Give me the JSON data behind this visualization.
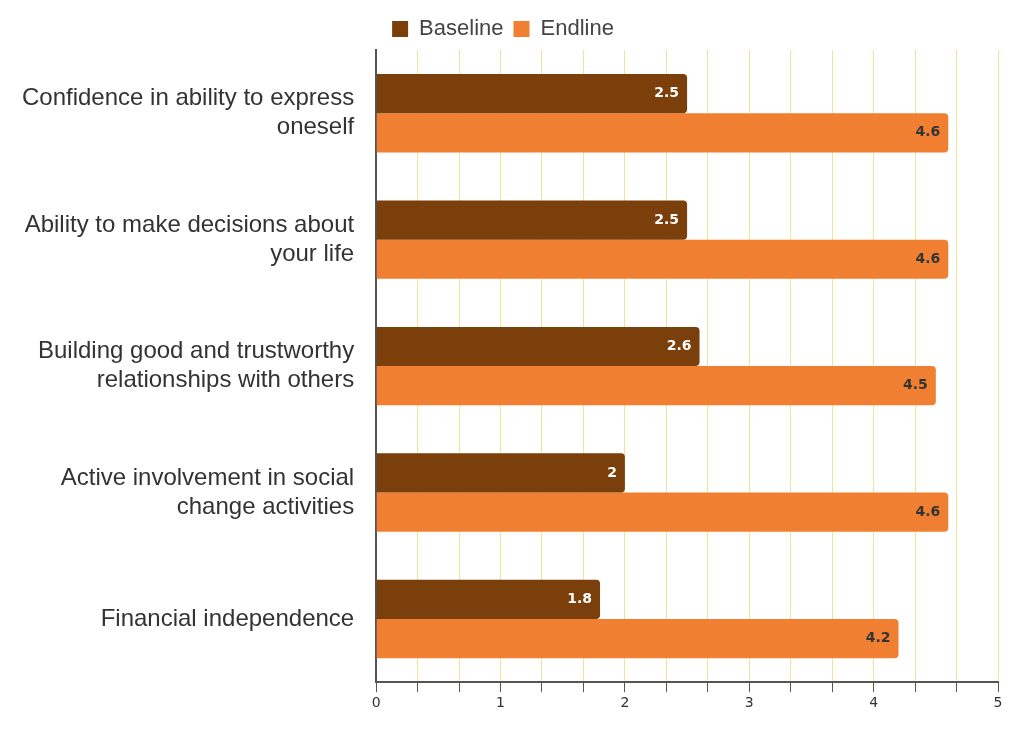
{
  "chart_data": {
    "type": "bar",
    "orientation": "horizontal",
    "categories": [
      "Confidence in ability to express oneself",
      "Ability to make decisions about your life",
      "Building good and trustworthy relationships with others",
      "Active involvement in social change activities",
      "Financial independence"
    ],
    "series": [
      {
        "name": "Baseline",
        "color": "#7a3f0a",
        "values": [
          2.5,
          2.5,
          2.6,
          2,
          1.8
        ]
      },
      {
        "name": "Endline",
        "color": "#f07f32",
        "values": [
          4.6,
          4.6,
          4.5,
          4.6,
          4.2
        ]
      }
    ],
    "xlim": [
      0,
      5
    ],
    "xticks": [
      0,
      {
        "value": 0.333,
        "label": null
      },
      {
        "value": 0.667,
        "label": null
      },
      1,
      {
        "value": 1.333,
        "label": null
      },
      {
        "value": 1.667,
        "label": null
      },
      2,
      {
        "value": 2.333,
        "label": null
      },
      {
        "value": 2.667,
        "label": null
      },
      3,
      {
        "value": 3.333,
        "label": null
      },
      {
        "value": 3.667,
        "label": null
      },
      4,
      {
        "value": 4.333,
        "label": null
      },
      {
        "value": 4.667,
        "label": null
      },
      5
    ],
    "grid": "x",
    "legend": "top",
    "data_labels": true
  }
}
